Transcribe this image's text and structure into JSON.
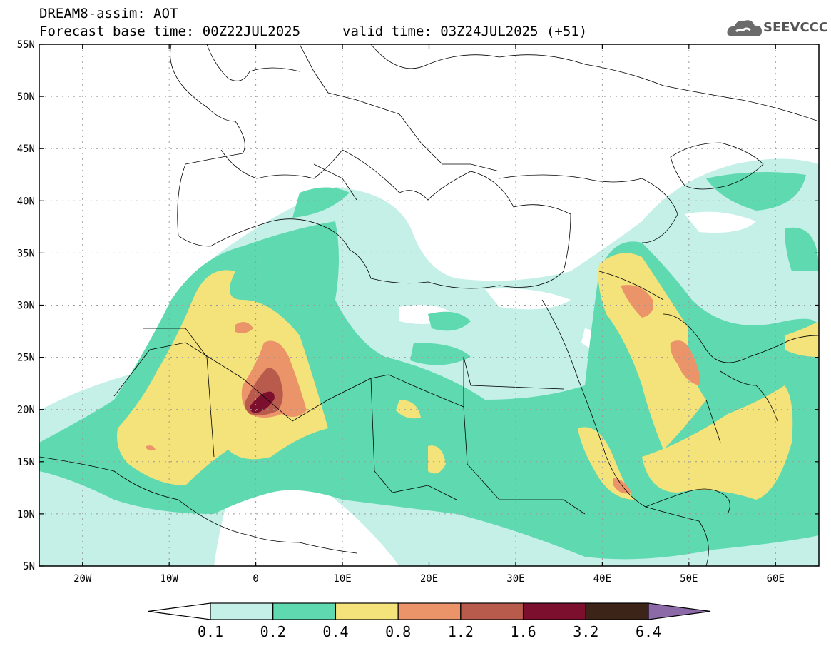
{
  "title": {
    "line1": "DREAM8-assim: AOT",
    "base_time": "Forecast base time: 00Z22JUL2025",
    "valid_time": "valid time: 03Z24JUL2025 (+51)"
  },
  "logo": {
    "text": "SEEVCCC",
    "icon": "cloud-icon"
  },
  "lat_labels": [
    "55N",
    "50N",
    "45N",
    "40N",
    "35N",
    "30N",
    "25N",
    "20N",
    "15N",
    "10N",
    "5N"
  ],
  "lon_labels": [
    "20W",
    "10W",
    "0",
    "10E",
    "20E",
    "30E",
    "40E",
    "50E",
    "60E"
  ],
  "colorbar": {
    "levels": [
      "0.1",
      "0.2",
      "0.4",
      "0.8",
      "1.2",
      "1.6",
      "3.2",
      "6.4"
    ],
    "colors": [
      "#c4f0e8",
      "#5ed9b0",
      "#f4e27a",
      "#eb946a",
      "#b85a4c",
      "#7d0f2e",
      "#3c2418",
      "#8c6aa8"
    ]
  }
}
